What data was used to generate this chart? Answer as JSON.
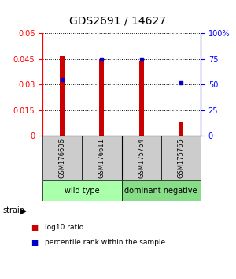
{
  "title": "GDS2691 / 14627",
  "samples": [
    "GSM176606",
    "GSM176611",
    "GSM175764",
    "GSM175765"
  ],
  "log10_ratio": [
    0.047,
    0.045,
    0.044,
    0.008
  ],
  "percentile_rank": [
    55,
    75,
    75,
    52
  ],
  "ylim_left": [
    0,
    0.06
  ],
  "ylim_right": [
    0,
    100
  ],
  "yticks_left": [
    0,
    0.015,
    0.03,
    0.045,
    0.06
  ],
  "yticks_right": [
    0,
    25,
    50,
    75,
    100
  ],
  "bar_color": "#cc0000",
  "dot_color": "#0000cc",
  "groups": [
    {
      "name": "wild type",
      "samples": [
        0,
        1
      ],
      "color": "#aaffaa"
    },
    {
      "name": "dominant negative",
      "samples": [
        2,
        3
      ],
      "color": "#88dd88"
    }
  ],
  "group_label": "strain",
  "legend_bar_label": "log10 ratio",
  "legend_dot_label": "percentile rank within the sample",
  "title_fontsize": 10,
  "tick_fontsize": 7,
  "label_fontsize": 7,
  "bar_width": 0.12
}
